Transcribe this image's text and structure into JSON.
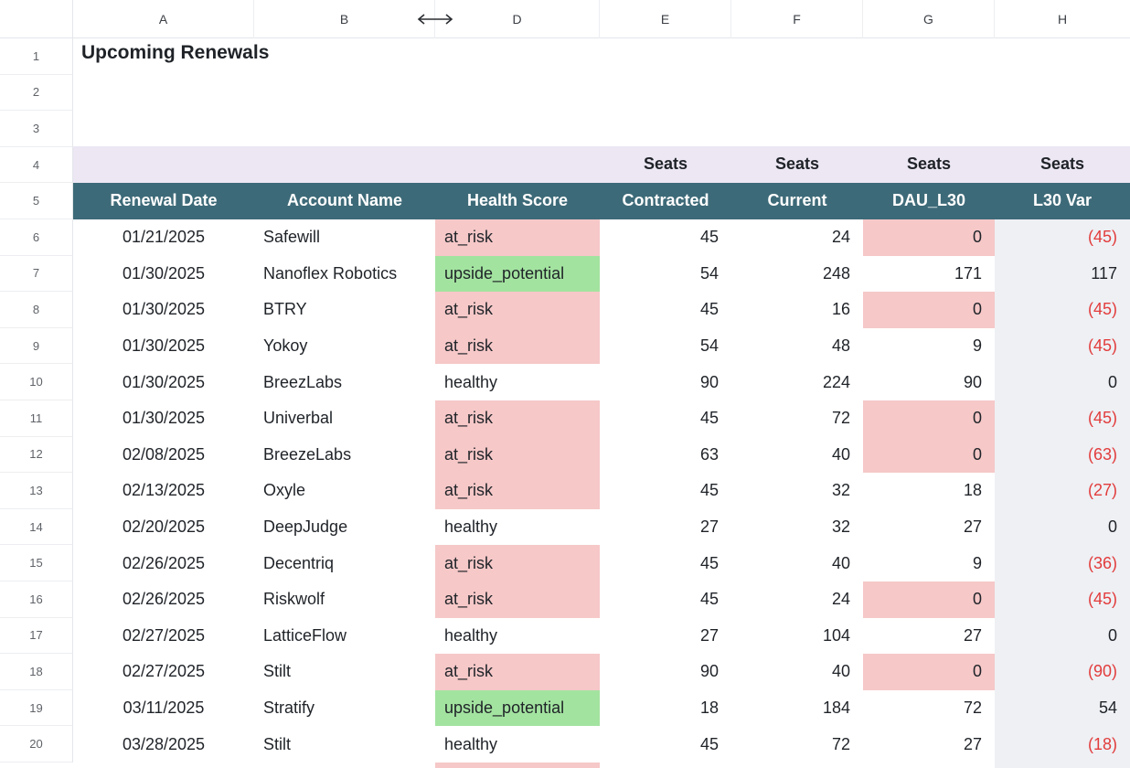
{
  "columns": [
    "A",
    "B",
    "D",
    "E",
    "F",
    "G",
    "H"
  ],
  "title": "Upcoming Renewals",
  "row_numbers": [
    "1",
    "2",
    "3",
    "4",
    "5",
    "6",
    "7",
    "8",
    "9",
    "10",
    "11",
    "12",
    "13",
    "14",
    "15",
    "16",
    "17",
    "18",
    "19",
    "20"
  ],
  "group_header": {
    "contracted": "Seats",
    "current": "Seats",
    "dau": "Seats",
    "var": "Seats"
  },
  "headers": {
    "renewal_date": "Renewal Date",
    "account_name": "Account Name",
    "health_score": "Health Score",
    "contracted": "Contracted",
    "current": "Current",
    "dau": "DAU_L30",
    "var": "L30 Var"
  },
  "rows": [
    {
      "date": "01/21/2025",
      "account": "Safewill",
      "health": "at_risk",
      "contracted": "45",
      "current": "24",
      "dau": "0",
      "var": "(45)"
    },
    {
      "date": "01/30/2025",
      "account": "Nanoflex Robotics",
      "health": "upside_potential",
      "contracted": "54",
      "current": "248",
      "dau": "171",
      "var": "117"
    },
    {
      "date": "01/30/2025",
      "account": "BTRY",
      "health": "at_risk",
      "contracted": "45",
      "current": "16",
      "dau": "0",
      "var": "(45)"
    },
    {
      "date": "01/30/2025",
      "account": "Yokoy",
      "health": "at_risk",
      "contracted": "54",
      "current": "48",
      "dau": "9",
      "var": "(45)"
    },
    {
      "date": "01/30/2025",
      "account": "BreezLabs",
      "health": "healthy",
      "contracted": "90",
      "current": "224",
      "dau": "90",
      "var": "0"
    },
    {
      "date": "01/30/2025",
      "account": "Univerbal",
      "health": "at_risk",
      "contracted": "45",
      "current": "72",
      "dau": "0",
      "var": "(45)"
    },
    {
      "date": "02/08/2025",
      "account": "BreezeLabs",
      "health": "at_risk",
      "contracted": "63",
      "current": "40",
      "dau": "0",
      "var": "(63)"
    },
    {
      "date": "02/13/2025",
      "account": "Oxyle",
      "health": "at_risk",
      "contracted": "45",
      "current": "32",
      "dau": "18",
      "var": "(27)"
    },
    {
      "date": "02/20/2025",
      "account": "DeepJudge",
      "health": "healthy",
      "contracted": "27",
      "current": "32",
      "dau": "27",
      "var": "0"
    },
    {
      "date": "02/26/2025",
      "account": "Decentriq",
      "health": "at_risk",
      "contracted": "45",
      "current": "40",
      "dau": "9",
      "var": "(36)"
    },
    {
      "date": "02/26/2025",
      "account": "Riskwolf",
      "health": "at_risk",
      "contracted": "45",
      "current": "24",
      "dau": "0",
      "var": "(45)"
    },
    {
      "date": "02/27/2025",
      "account": "LatticeFlow",
      "health": "healthy",
      "contracted": "27",
      "current": "104",
      "dau": "27",
      "var": "0"
    },
    {
      "date": "02/27/2025",
      "account": "Stilt",
      "health": "at_risk",
      "contracted": "90",
      "current": "40",
      "dau": "0",
      "var": "(90)"
    },
    {
      "date": "03/11/2025",
      "account": "Stratify",
      "health": "upside_potential",
      "contracted": "18",
      "current": "184",
      "dau": "72",
      "var": "54"
    },
    {
      "date": "03/28/2025",
      "account": "Stilt",
      "health": "healthy",
      "contracted": "45",
      "current": "72",
      "dau": "27",
      "var": "(18)"
    }
  ],
  "colors": {
    "header_band": "#3d6a78",
    "group_band": "#ece7f3",
    "at_risk": "#f6c8c8",
    "upside": "#a3e3a0",
    "negative_text": "#e23c3c",
    "var_column": "#eef0f4"
  },
  "icons": {
    "resize": "column-resize-icon"
  }
}
